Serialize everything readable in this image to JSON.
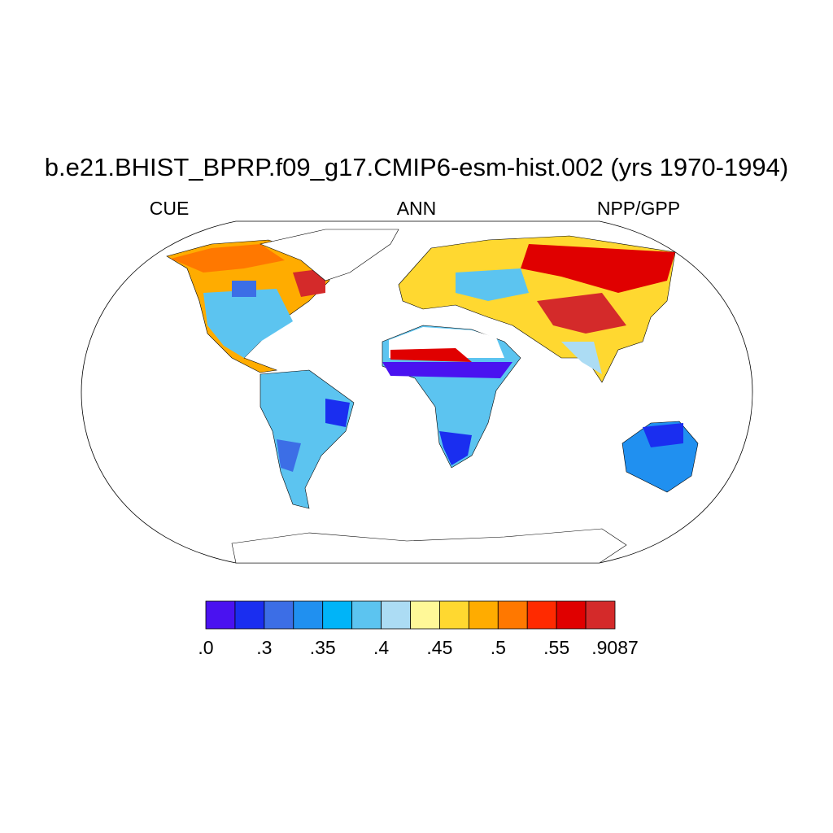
{
  "title": "b.e21.BHIST_BPRP.f09_g17.CMIP6-esm-hist.002 (yrs 1970-1994)",
  "subtitles": {
    "left": "CUE",
    "center": "ANN",
    "right": "NPP/GPP"
  },
  "colorbar": {
    "colors": [
      "#4a12f0",
      "#1a2ef0",
      "#3c6ee6",
      "#2090f0",
      "#00b4f8",
      "#5cc4f0",
      "#acdcf4",
      "#fff898",
      "#ffd830",
      "#ffac00",
      "#ff7800",
      "#ff2a00",
      "#e00000",
      "#d42a2a"
    ],
    "labels": [
      ".0",
      ".3",
      ".35",
      ".4",
      ".45",
      ".5",
      ".55",
      ".9087"
    ]
  }
}
